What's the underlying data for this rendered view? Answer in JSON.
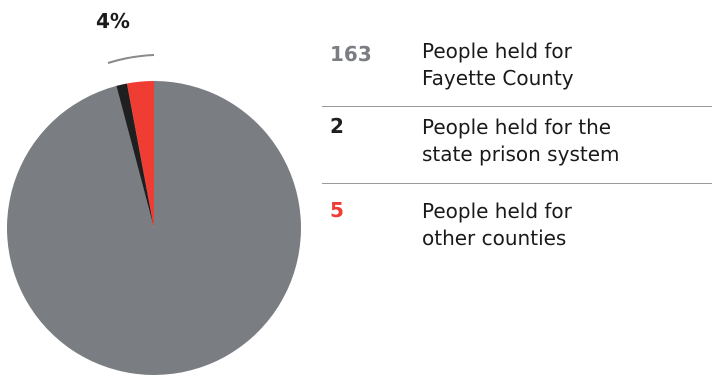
{
  "chart_data": {
    "type": "pie",
    "slices": [
      {
        "label": "People held for Fayette County",
        "value": 163,
        "color": "#7a7d82"
      },
      {
        "label": "People held for the state prison system",
        "value": 2,
        "color": "#1f1f1f"
      },
      {
        "label": "People held for other counties",
        "value": 5,
        "color": "#ef3d33"
      }
    ],
    "annotation": "4%"
  },
  "legend": [
    {
      "value": "163",
      "text": "People held for\nFayette County",
      "color": "#7a7d82"
    },
    {
      "value": "2",
      "text": "People held for the\nstate prison system",
      "color": "#1f1f1f"
    },
    {
      "value": "5",
      "text": "People held for\nother counties",
      "color": "#ef3d33"
    }
  ]
}
